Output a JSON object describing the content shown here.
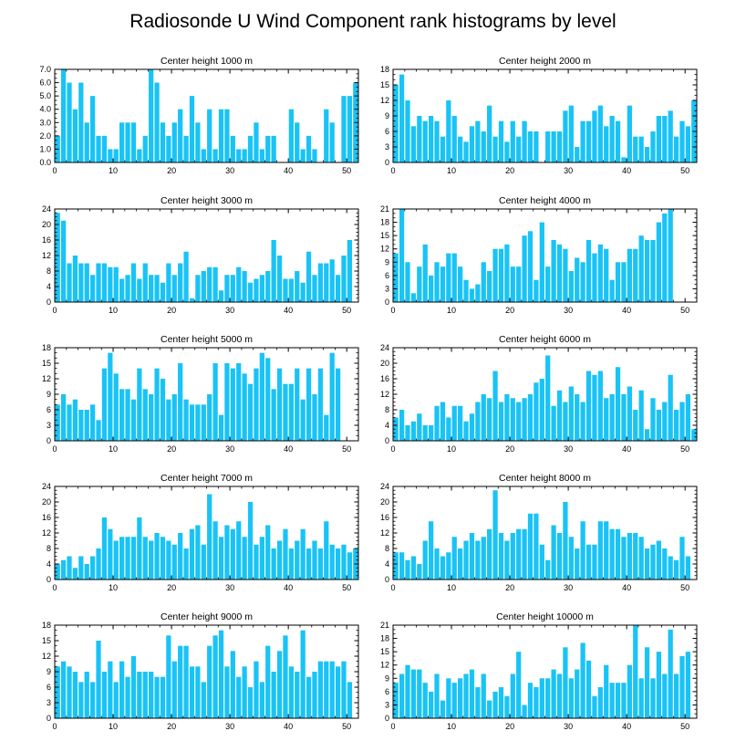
{
  "title": "Radiosonde U Wind Component rank histograms by level",
  "bar_color": "#19C3F6",
  "chart_data": [
    {
      "type": "bar",
      "title": "Center height 1000 m",
      "x": [
        0,
        1,
        2,
        3,
        4,
        5,
        6,
        7,
        8,
        9,
        10,
        11,
        12,
        13,
        14,
        15,
        16,
        17,
        18,
        19,
        20,
        21,
        22,
        23,
        24,
        25,
        26,
        27,
        28,
        29,
        30,
        31,
        32,
        33,
        34,
        35,
        36,
        37,
        38,
        39,
        40,
        41,
        42,
        43,
        44,
        45,
        46,
        47,
        48,
        49,
        50,
        51
      ],
      "values": [
        2,
        7,
        6,
        4,
        6,
        3,
        5,
        2,
        2,
        1,
        1,
        3,
        3,
        3,
        1,
        2,
        7,
        6,
        3,
        2,
        3,
        4,
        2,
        5,
        3,
        1,
        4,
        1,
        4,
        4,
        2,
        1,
        1,
        2,
        3,
        1,
        2,
        2,
        0,
        0,
        4,
        3,
        1,
        2,
        1,
        0,
        4,
        3,
        0,
        5,
        5,
        6
      ],
      "xlim": [
        0,
        52
      ],
      "ylim": [
        0,
        7
      ],
      "yticks": [
        0,
        1,
        2,
        3,
        4,
        5,
        6,
        7
      ],
      "ytick_labels": [
        "0.0",
        "1.0",
        "2.0",
        "3.0",
        "4.0",
        "5.0",
        "6.0",
        "7.0"
      ],
      "xticks": [
        0,
        10,
        20,
        30,
        40,
        50
      ]
    },
    {
      "type": "bar",
      "title": "Center height 2000 m",
      "x": [
        0,
        1,
        2,
        3,
        4,
        5,
        6,
        7,
        8,
        9,
        10,
        11,
        12,
        13,
        14,
        15,
        16,
        17,
        18,
        19,
        20,
        21,
        22,
        23,
        24,
        25,
        26,
        27,
        28,
        29,
        30,
        31,
        32,
        33,
        34,
        35,
        36,
        37,
        38,
        39,
        40,
        41,
        42,
        43,
        44,
        45,
        46,
        47,
        48,
        49,
        50,
        51
      ],
      "values": [
        15,
        17,
        12,
        7,
        9,
        8,
        9,
        8,
        5,
        12,
        9,
        5,
        4,
        7,
        8,
        6,
        11,
        5,
        8,
        4,
        8,
        5,
        8,
        6,
        6,
        0,
        6,
        6,
        6,
        10,
        11,
        3,
        8,
        8,
        10,
        11,
        7,
        9,
        8,
        1,
        11,
        5,
        5,
        3,
        6,
        9,
        9,
        10,
        5,
        8,
        7,
        12
      ],
      "xlim": [
        0,
        52
      ],
      "ylim": [
        0,
        18
      ],
      "yticks": [
        0,
        3,
        6,
        9,
        12,
        15,
        18
      ],
      "ytick_labels": [
        "0",
        "3",
        "6",
        "9",
        "12",
        "15",
        "18"
      ],
      "xticks": [
        0,
        10,
        20,
        30,
        40,
        50
      ]
    },
    {
      "type": "bar",
      "title": "Center height 3000 m",
      "x": [
        0,
        1,
        2,
        3,
        4,
        5,
        6,
        7,
        8,
        9,
        10,
        11,
        12,
        13,
        14,
        15,
        16,
        17,
        18,
        19,
        20,
        21,
        22,
        23,
        24,
        25,
        26,
        27,
        28,
        29,
        30,
        31,
        32,
        33,
        34,
        35,
        36,
        37,
        38,
        39,
        40,
        41,
        42,
        43,
        44,
        45,
        46,
        47,
        48,
        49,
        50,
        51
      ],
      "values": [
        23,
        21,
        10,
        12,
        10,
        10,
        7,
        10,
        10,
        9,
        9,
        6,
        7,
        10,
        6,
        10,
        7,
        7,
        5,
        10,
        7,
        10,
        13,
        1,
        7,
        8,
        9,
        9,
        3,
        7,
        7,
        9,
        8,
        5,
        6,
        7,
        8,
        16,
        12,
        6,
        6,
        8,
        5,
        13,
        7,
        10,
        10,
        11,
        7,
        12,
        16,
        0
      ],
      "xlim": [
        0,
        52
      ],
      "ylim": [
        0,
        24
      ],
      "yticks": [
        0,
        4,
        8,
        12,
        16,
        20,
        24
      ],
      "ytick_labels": [
        "0",
        "4",
        "8",
        "12",
        "16",
        "20",
        "24"
      ],
      "xticks": [
        0,
        10,
        20,
        30,
        40,
        50
      ]
    },
    {
      "type": "bar",
      "title": "Center height 4000 m",
      "x": [
        0,
        1,
        2,
        3,
        4,
        5,
        6,
        7,
        8,
        9,
        10,
        11,
        12,
        13,
        14,
        15,
        16,
        17,
        18,
        19,
        20,
        21,
        22,
        23,
        24,
        25,
        26,
        27,
        28,
        29,
        30,
        31,
        32,
        33,
        34,
        35,
        36,
        37,
        38,
        39,
        40,
        41,
        42,
        43,
        44,
        45,
        46,
        47,
        48,
        49,
        50,
        51
      ],
      "values": [
        11,
        21,
        9,
        2,
        8,
        13,
        6,
        9,
        8,
        11,
        11,
        8,
        5,
        3,
        4,
        9,
        7,
        12,
        12,
        13,
        8,
        8,
        15,
        16,
        5,
        18,
        8,
        14,
        13,
        12,
        7,
        10,
        9,
        14,
        11,
        13,
        12,
        5,
        9,
        9,
        12,
        12,
        15,
        14,
        14,
        18,
        20,
        21,
        0,
        0,
        0,
        0
      ],
      "xlim": [
        0,
        52
      ],
      "ylim": [
        0,
        21
      ],
      "yticks": [
        0,
        3,
        6,
        9,
        12,
        15,
        18,
        21
      ],
      "ytick_labels": [
        "0",
        "3",
        "6",
        "9",
        "12",
        "15",
        "18",
        "21"
      ],
      "xticks": [
        0,
        10,
        20,
        30,
        40,
        50
      ]
    },
    {
      "type": "bar",
      "title": "Center height 5000 m",
      "x": [
        0,
        1,
        2,
        3,
        4,
        5,
        6,
        7,
        8,
        9,
        10,
        11,
        12,
        13,
        14,
        15,
        16,
        17,
        18,
        19,
        20,
        21,
        22,
        23,
        24,
        25,
        26,
        27,
        28,
        29,
        30,
        31,
        32,
        33,
        34,
        35,
        36,
        37,
        38,
        39,
        40,
        41,
        42,
        43,
        44,
        45,
        46,
        47,
        48,
        49,
        50,
        51
      ],
      "values": [
        7,
        9,
        7,
        8,
        6,
        6,
        7,
        4,
        14,
        17,
        13,
        10,
        10,
        8,
        14,
        10,
        9,
        14,
        12,
        8,
        9,
        15,
        8,
        7,
        7,
        7,
        9,
        15,
        5,
        15,
        14,
        15,
        13,
        11,
        14,
        17,
        16,
        10,
        14,
        11,
        11,
        14,
        8,
        14,
        9,
        14,
        5,
        17,
        14,
        0,
        0,
        0
      ],
      "xlim": [
        0,
        52
      ],
      "ylim": [
        0,
        18
      ],
      "yticks": [
        0,
        3,
        6,
        9,
        12,
        15,
        18
      ],
      "ytick_labels": [
        "0",
        "3",
        "6",
        "9",
        "12",
        "15",
        "18"
      ],
      "xticks": [
        0,
        10,
        20,
        30,
        40,
        50
      ]
    },
    {
      "type": "bar",
      "title": "Center height 6000 m",
      "x": [
        0,
        1,
        2,
        3,
        4,
        5,
        6,
        7,
        8,
        9,
        10,
        11,
        12,
        13,
        14,
        15,
        16,
        17,
        18,
        19,
        20,
        21,
        22,
        23,
        24,
        25,
        26,
        27,
        28,
        29,
        30,
        31,
        32,
        33,
        34,
        35,
        36,
        37,
        38,
        39,
        40,
        41,
        42,
        43,
        44,
        45,
        46,
        47,
        48,
        49,
        50,
        51
      ],
      "values": [
        6,
        8,
        4,
        5,
        7,
        4,
        4,
        9,
        10,
        6,
        9,
        9,
        5,
        7,
        10,
        12,
        11,
        18,
        10,
        12,
        11,
        10,
        11,
        12,
        15,
        16,
        22,
        9,
        13,
        10,
        14,
        12,
        10,
        18,
        17,
        18,
        11,
        12,
        19,
        12,
        14,
        8,
        13,
        3,
        11,
        8,
        10,
        17,
        8,
        10,
        12,
        3
      ],
      "xlim": [
        0,
        52
      ],
      "ylim": [
        0,
        24
      ],
      "yticks": [
        0,
        4,
        8,
        12,
        16,
        20,
        24
      ],
      "ytick_labels": [
        "0",
        "4",
        "8",
        "12",
        "16",
        "20",
        "24"
      ],
      "xticks": [
        0,
        10,
        20,
        30,
        40,
        50
      ]
    },
    {
      "type": "bar",
      "title": "Center height 7000 m",
      "x": [
        0,
        1,
        2,
        3,
        4,
        5,
        6,
        7,
        8,
        9,
        10,
        11,
        12,
        13,
        14,
        15,
        16,
        17,
        18,
        19,
        20,
        21,
        22,
        23,
        24,
        25,
        26,
        27,
        28,
        29,
        30,
        31,
        32,
        33,
        34,
        35,
        36,
        37,
        38,
        39,
        40,
        41,
        42,
        43,
        44,
        45,
        46,
        47,
        48,
        49,
        50,
        51
      ],
      "values": [
        4,
        5,
        6,
        3,
        6,
        4,
        6,
        8,
        16,
        13,
        10,
        11,
        11,
        11,
        16,
        11,
        10,
        12,
        11,
        10,
        9,
        12,
        8,
        13,
        14,
        9,
        22,
        15,
        11,
        14,
        13,
        15,
        11,
        20,
        9,
        11,
        14,
        8,
        10,
        13,
        8,
        10,
        13,
        8,
        10,
        8,
        15,
        9,
        8,
        9,
        7,
        8
      ],
      "xlim": [
        0,
        52
      ],
      "ylim": [
        0,
        24
      ],
      "yticks": [
        0,
        4,
        8,
        12,
        16,
        20,
        24
      ],
      "ytick_labels": [
        "0",
        "4",
        "8",
        "12",
        "16",
        "20",
        "24"
      ],
      "xticks": [
        0,
        10,
        20,
        30,
        40,
        50
      ]
    },
    {
      "type": "bar",
      "title": "Center height 8000 m",
      "x": [
        0,
        1,
        2,
        3,
        4,
        5,
        6,
        7,
        8,
        9,
        10,
        11,
        12,
        13,
        14,
        15,
        16,
        17,
        18,
        19,
        20,
        21,
        22,
        23,
        24,
        25,
        26,
        27,
        28,
        29,
        30,
        31,
        32,
        33,
        34,
        35,
        36,
        37,
        38,
        39,
        40,
        41,
        42,
        43,
        44,
        45,
        46,
        47,
        48,
        49,
        50,
        51
      ],
      "values": [
        7,
        7,
        5,
        6,
        4,
        10,
        15,
        8,
        6,
        7,
        11,
        8,
        10,
        12,
        10,
        11,
        13,
        23,
        12,
        10,
        12,
        13,
        13,
        17,
        17,
        9,
        5,
        14,
        12,
        20,
        11,
        8,
        15,
        9,
        9,
        15,
        15,
        13,
        13,
        11,
        12,
        12,
        11,
        8,
        9,
        10,
        8,
        6,
        5,
        11,
        6,
        0
      ],
      "xlim": [
        0,
        52
      ],
      "ylim": [
        0,
        24
      ],
      "yticks": [
        0,
        4,
        8,
        12,
        16,
        20,
        24
      ],
      "ytick_labels": [
        "0",
        "4",
        "8",
        "12",
        "16",
        "20",
        "24"
      ],
      "xticks": [
        0,
        10,
        20,
        30,
        40,
        50
      ]
    },
    {
      "type": "bar",
      "title": "Center height 9000 m",
      "x": [
        0,
        1,
        2,
        3,
        4,
        5,
        6,
        7,
        8,
        9,
        10,
        11,
        12,
        13,
        14,
        15,
        16,
        17,
        18,
        19,
        20,
        21,
        22,
        23,
        24,
        25,
        26,
        27,
        28,
        29,
        30,
        31,
        32,
        33,
        34,
        35,
        36,
        37,
        38,
        39,
        40,
        41,
        42,
        43,
        44,
        45,
        46,
        47,
        48,
        49,
        50,
        51
      ],
      "values": [
        10,
        11,
        10,
        9,
        7,
        9,
        7,
        15,
        9,
        11,
        7,
        11,
        8,
        12,
        9,
        9,
        9,
        8,
        8,
        16,
        11,
        14,
        14,
        10,
        10,
        7,
        14,
        16,
        17,
        10,
        13,
        8,
        10,
        6,
        11,
        7,
        14,
        9,
        13,
        16,
        10,
        9,
        17,
        8,
        9,
        11,
        11,
        11,
        10,
        11,
        7,
        0
      ],
      "xlim": [
        0,
        52
      ],
      "ylim": [
        0,
        18
      ],
      "yticks": [
        0,
        3,
        6,
        9,
        12,
        15,
        18
      ],
      "ytick_labels": [
        "0",
        "3",
        "6",
        "9",
        "12",
        "15",
        "18"
      ],
      "xticks": [
        0,
        10,
        20,
        30,
        40,
        50
      ]
    },
    {
      "type": "bar",
      "title": "Center height 10000 m",
      "x": [
        0,
        1,
        2,
        3,
        4,
        5,
        6,
        7,
        8,
        9,
        10,
        11,
        12,
        13,
        14,
        15,
        16,
        17,
        18,
        19,
        20,
        21,
        22,
        23,
        24,
        25,
        26,
        27,
        28,
        29,
        30,
        31,
        32,
        33,
        34,
        35,
        36,
        37,
        38,
        39,
        40,
        41,
        42,
        43,
        44,
        45,
        46,
        47,
        48,
        49,
        50,
        51
      ],
      "values": [
        8,
        10,
        12,
        11,
        11,
        8,
        6,
        10,
        4,
        9,
        8,
        9,
        10,
        11,
        7,
        10,
        4,
        6,
        7,
        5,
        10,
        15,
        3,
        8,
        7,
        9,
        9,
        11,
        10,
        16,
        9,
        11,
        17,
        13,
        5,
        7,
        12,
        8,
        8,
        8,
        12,
        21,
        9,
        16,
        9,
        15,
        10,
        20,
        10,
        14,
        15,
        0
      ],
      "xlim": [
        0,
        52
      ],
      "ylim": [
        0,
        21
      ],
      "yticks": [
        0,
        3,
        6,
        9,
        12,
        15,
        18,
        21
      ],
      "ytick_labels": [
        "0",
        "3",
        "6",
        "9",
        "12",
        "15",
        "18",
        "21"
      ],
      "xticks": [
        0,
        10,
        20,
        30,
        40,
        50
      ]
    }
  ]
}
